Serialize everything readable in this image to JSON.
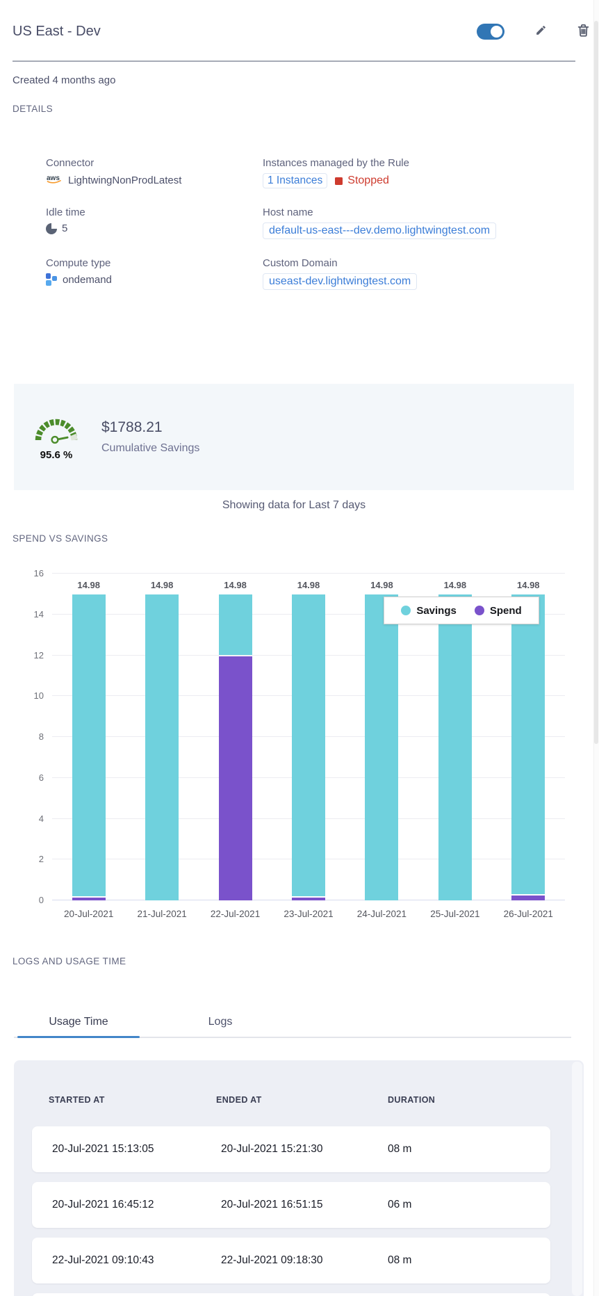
{
  "header": {
    "title": "US East - Dev",
    "toggle_on": true
  },
  "created_text": "Created 4 months ago",
  "section_headings": {
    "details": "DETAILS",
    "chart": "SPEND VS SAVINGS",
    "logs": "LOGS AND USAGE TIME"
  },
  "details": {
    "connector": {
      "label": "Connector",
      "value": "LightwingNonProdLatest"
    },
    "instances": {
      "label": "Instances managed by the Rule",
      "link": "1 Instances",
      "status": "Stopped"
    },
    "idle_time": {
      "label": "Idle time",
      "value": "5"
    },
    "host_name": {
      "label": "Host name",
      "value": "default-us-east---dev.demo.lightwingtest.com"
    },
    "compute_type": {
      "label": "Compute type",
      "value": "ondemand"
    },
    "custom_domain": {
      "label": "Custom Domain",
      "value": "useast-dev.lightwingtest.com"
    }
  },
  "savings_banner": {
    "percent": "95.6 %",
    "amount": "$1788.21",
    "caption": "Cumulative Savings"
  },
  "showing_data": "Showing data for Last 7 days",
  "chart_data": {
    "type": "bar",
    "stacked": true,
    "title": "SPEND VS SAVINGS",
    "categories": [
      "20-Jul-2021",
      "21-Jul-2021",
      "22-Jul-2021",
      "23-Jul-2021",
      "24-Jul-2021",
      "25-Jul-2021",
      "26-Jul-2021"
    ],
    "series": [
      {
        "name": "Savings",
        "color": "#6fd1dd",
        "values": [
          14.83,
          14.98,
          3.03,
          14.83,
          14.98,
          14.98,
          14.73
        ]
      },
      {
        "name": "Spend",
        "color": "#7a52cb",
        "values": [
          0.15,
          0,
          11.95,
          0.15,
          0,
          0,
          0.25
        ]
      }
    ],
    "bar_total_labels": [
      "14.98",
      "14.98",
      "14.98",
      "14.98",
      "14.98",
      "14.98",
      "14.98"
    ],
    "ylim": [
      0,
      16
    ],
    "ytick_step": 2,
    "grid": "horizontal",
    "legend_position": "top-right-overlay",
    "xlabel": "",
    "ylabel": ""
  },
  "tabs": {
    "usage_time": "Usage Time",
    "logs": "Logs",
    "active": "Usage Time"
  },
  "usage_table": {
    "columns": [
      "STARTED AT",
      "ENDED AT",
      "DURATION"
    ],
    "rows": [
      [
        "20-Jul-2021 15:13:05",
        "20-Jul-2021 15:21:30",
        "08 m"
      ],
      [
        "20-Jul-2021 16:45:12",
        "20-Jul-2021 16:51:15",
        "06 m"
      ],
      [
        "22-Jul-2021 09:10:43",
        "22-Jul-2021 09:18:30",
        "08 m"
      ]
    ],
    "visible_partial_rows": 1
  },
  "icons": {
    "edit": "pencil-icon",
    "delete": "trash-icon",
    "connector": "aws-logo-icon",
    "idle": "clock-icon",
    "compute": "blocks-icon",
    "savings": "gauge-icon"
  },
  "colors": {
    "toggle_blue": "#3176b5",
    "link_blue": "#3b7dd8",
    "danger_red": "#ce3b2e",
    "savings_teal": "#6fd1dd",
    "spend_purple": "#7a52cb",
    "gauge_green": "#4c8c2b",
    "banner_bg": "#f3f7fa",
    "panel_bg": "#edeff5",
    "tab_underline": "#4286c8"
  }
}
